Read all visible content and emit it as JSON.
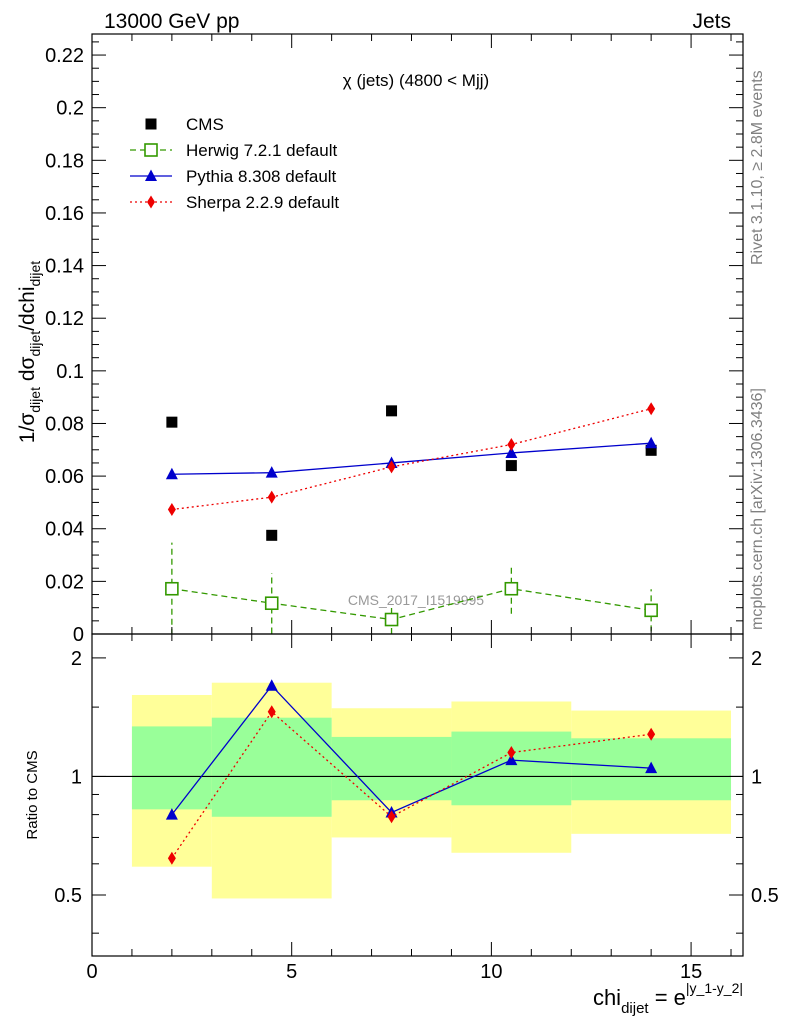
{
  "header": {
    "left": "13000 GeV pp",
    "right": "Jets"
  },
  "side_labels": {
    "rivet": "Rivet 3.1.10, ≥ 2.8M events",
    "mcplots": "mcplots.cern.ch [arXiv:1306.3436]"
  },
  "watermark": "CMS_2017_I1519995",
  "chart_data": [
    {
      "type": "scatter",
      "panel": "main",
      "title": "χ (jets) (4800 < Mjj)",
      "ylabel": "1/σ_dijet dσ_dijet/dchi_dijet",
      "ylim": [
        0,
        0.228
      ],
      "xlim": [
        0,
        16.3
      ],
      "yticks": [
        0,
        0.02,
        0.04,
        0.06,
        0.08,
        0.1,
        0.12,
        0.14,
        0.16,
        0.18,
        0.2,
        0.22
      ],
      "ytick_labels": [
        "0",
        "0.02",
        "0.04",
        "0.06",
        "0.08",
        "0.1",
        "0.12",
        "0.14",
        "0.16",
        "0.18",
        "0.2",
        "0.22"
      ],
      "legend_position": "top-left",
      "series": [
        {
          "name": "CMS",
          "style": "markers",
          "color": "#000000",
          "x": [
            2,
            4.5,
            7.5,
            10.5,
            14
          ],
          "y": [
            0.0805,
            0.0375,
            0.0848,
            0.064,
            0.0698
          ]
        },
        {
          "name": "Herwig 7.2.1 default",
          "style": "dashed",
          "color": "#339900",
          "x": [
            2,
            4.5,
            7.5,
            10.5,
            14
          ],
          "y": [
            0.0172,
            0.0117,
            0.0055,
            0.0172,
            0.009
          ],
          "err": [
            0.0175,
            0.0115,
            0.0055,
            0.0095,
            0.008
          ]
        },
        {
          "name": "Pythia 8.308 default",
          "style": "solid",
          "color": "#0000cc",
          "x": [
            2,
            4.5,
            7.5,
            10.5,
            14
          ],
          "y": [
            0.0607,
            0.0613,
            0.065,
            0.0688,
            0.0725
          ]
        },
        {
          "name": "Sherpa 2.2.9 default",
          "style": "dotted",
          "color": "#ee0000",
          "x": [
            2,
            4.5,
            7.5,
            10.5,
            14
          ],
          "y": [
            0.0473,
            0.052,
            0.0635,
            0.072,
            0.0856
          ]
        }
      ]
    },
    {
      "type": "line",
      "panel": "ratio",
      "ylabel": "Ratio to CMS",
      "xlabel": "chi_dijet = e^|y_1-y_2|",
      "ylim": [
        0.35,
        2.3
      ],
      "xlim": [
        0,
        16.3
      ],
      "yticks": [
        0.5,
        1,
        2
      ],
      "ytick_labels": [
        "0.5",
        "1",
        "2"
      ],
      "xticks": [
        0,
        5,
        10,
        15
      ],
      "xtick_labels": [
        "0",
        "5",
        "10",
        "15"
      ],
      "bands": [
        {
          "x0": 1,
          "x1": 3,
          "yellow": [
            0.59,
            1.61
          ],
          "green": [
            0.825,
            1.34
          ]
        },
        {
          "x0": 3,
          "x1": 6,
          "yellow": [
            0.49,
            1.73
          ],
          "green": [
            0.79,
            1.41
          ]
        },
        {
          "x0": 6,
          "x1": 9,
          "yellow": [
            0.7,
            1.49
          ],
          "green": [
            0.87,
            1.26
          ]
        },
        {
          "x0": 9,
          "x1": 12,
          "yellow": [
            0.64,
            1.55
          ],
          "green": [
            0.845,
            1.3
          ]
        },
        {
          "x0": 12,
          "x1": 16,
          "yellow": [
            0.715,
            1.47
          ],
          "green": [
            0.87,
            1.25
          ]
        }
      ],
      "series": [
        {
          "name": "Pythia 8.308 default",
          "style": "solid",
          "color": "#0000cc",
          "x": [
            2,
            4.5,
            7.5,
            10.5,
            14
          ],
          "y": [
            0.8,
            1.7,
            0.81,
            1.1,
            1.05
          ]
        },
        {
          "name": "Sherpa 2.2.9 default",
          "style": "dotted",
          "color": "#ee0000",
          "x": [
            2,
            4.5,
            7.5,
            10.5,
            14
          ],
          "y": [
            0.62,
            1.46,
            0.79,
            1.15,
            1.28
          ]
        }
      ]
    }
  ]
}
